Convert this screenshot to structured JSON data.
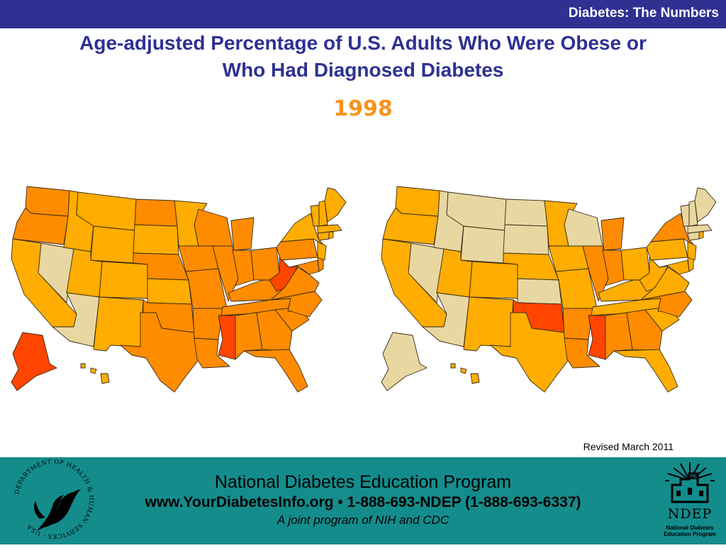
{
  "header": {
    "bar_title": "Diabetes: The Numbers",
    "slide_title_line1": "Age-adjusted Percentage of U.S. Adults Who Were Obese or",
    "slide_title_line2": "Who Had Diagnosed Diabetes",
    "year": "1998"
  },
  "colors": {
    "header_bar": "#2e3192",
    "title_text": "#2e3192",
    "year_text": "#f7941d",
    "footer_bg": "#148c8c",
    "scale": {
      "lowest": "#e8d7a1",
      "low": "#ffad00",
      "mid": "#ff8c00",
      "high": "#ff7a00",
      "highest": "#ff4500"
    }
  },
  "maps": [
    {
      "subject": "obesity",
      "states": {
        "WA": "mid",
        "OR": "mid",
        "CA": "low",
        "NV": "lowest",
        "ID": "low",
        "MT": "low",
        "WY": "low",
        "UT": "low",
        "AZ": "lowest",
        "CO": "low",
        "NM": "low",
        "ND": "mid",
        "SD": "low",
        "NE": "mid",
        "KS": "low",
        "OK": "mid",
        "TX": "mid",
        "MN": "low",
        "IA": "mid",
        "MO": "mid",
        "AR": "mid",
        "LA": "mid",
        "WI": "mid",
        "IL": "mid",
        "MS": "highest",
        "MI": "mid",
        "IN": "mid",
        "KY": "mid",
        "TN": "mid",
        "AL": "mid",
        "OH": "mid",
        "WV": "highest",
        "GA": "mid",
        "FL": "mid",
        "SC": "mid",
        "NC": "mid",
        "VA": "mid",
        "PA": "mid",
        "NY": "low",
        "MD": "mid",
        "DE": "mid",
        "NJ": "low",
        "CT": "low",
        "RI": "low",
        "MA": "low",
        "VT": "low",
        "NH": "low",
        "ME": "low",
        "AK": "highest",
        "HI": "low"
      }
    },
    {
      "subject": "diabetes",
      "states": {
        "WA": "low",
        "OR": "low",
        "CA": "low",
        "NV": "lowest",
        "ID": "lowest",
        "MT": "lowest",
        "WY": "lowest",
        "UT": "low",
        "AZ": "lowest",
        "CO": "low",
        "NM": "low",
        "ND": "lowest",
        "SD": "lowest",
        "NE": "low",
        "KS": "lowest",
        "OK": "highest",
        "TX": "low",
        "MN": "low",
        "IA": "low",
        "MO": "low",
        "AR": "mid",
        "LA": "mid",
        "WI": "lowest",
        "IL": "mid",
        "MS": "highest",
        "MI": "mid",
        "IN": "mid",
        "KY": "low",
        "TN": "low",
        "AL": "mid",
        "OH": "low",
        "WV": "low",
        "GA": "mid",
        "FL": "low",
        "SC": "low",
        "NC": "mid",
        "VA": "low",
        "PA": "low",
        "NY": "mid",
        "MD": "low",
        "DE": "low",
        "NJ": "low",
        "CT": "lowest",
        "RI": "low",
        "MA": "lowest",
        "VT": "lowest",
        "NH": "lowest",
        "ME": "lowest",
        "AK": "lowest",
        "HI": "low"
      }
    }
  ],
  "revised_note": "Revised March 2011",
  "footer": {
    "line1": "National Diabetes Education Program",
    "line2": "www.YourDiabetesInfo.org • 1-888-693-NDEP (1-888-693-6337)",
    "line3": "A joint program of NIH and CDC"
  },
  "logos": {
    "hhs_seal_text": "DEPARTMENT OF HEALTH & HUMAN SERVICES · USA",
    "ndep_wordmark": "NDEP",
    "ndep_subtitle_line1": "National Diabetes",
    "ndep_subtitle_line2": "Education Program",
    "hhs_icon": "hhs-eagle-seal-icon",
    "ndep_icon": "ndep-sunrise-house-icon"
  }
}
